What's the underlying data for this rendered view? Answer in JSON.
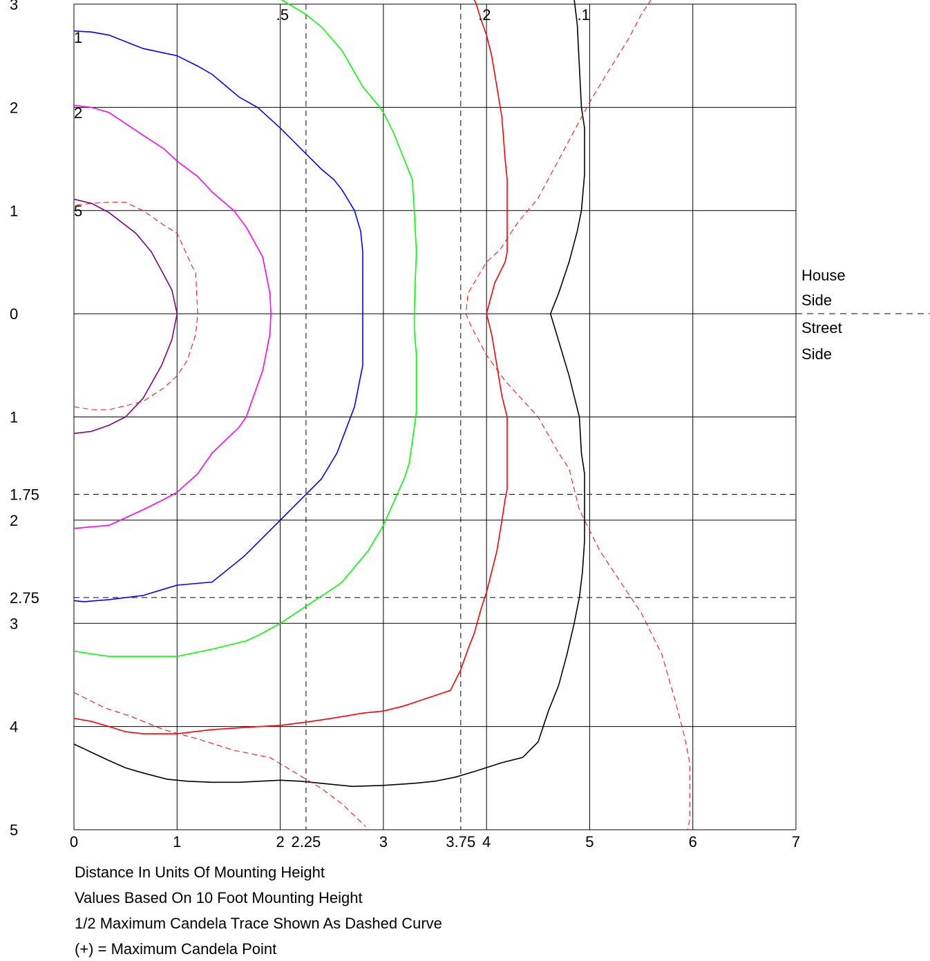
{
  "chart_data": {
    "type": "line",
    "title": "",
    "xlabel": "Distance In Units Of Mounting Height",
    "ylabel": "",
    "xlim": [
      0,
      7
    ],
    "ylim": [
      -5,
      3
    ],
    "grid": true,
    "x_ticks": [
      "0",
      "1",
      "2",
      "2.25",
      "3",
      "3.75",
      "4",
      "5",
      "6",
      "7"
    ],
    "y_ticks": [
      {
        "label": "3",
        "v": 3
      },
      {
        "label": "2",
        "v": 2
      },
      {
        "label": "1",
        "v": 1
      },
      {
        "label": "0",
        "v": 0
      },
      {
        "label": "1",
        "v": -1
      },
      {
        "label": "1.75",
        "v": -1.75
      },
      {
        "label": "2",
        "v": -2
      },
      {
        "label": "2.75",
        "v": -2.75
      },
      {
        "label": "3",
        "v": -3
      },
      {
        "label": "4",
        "v": -4
      },
      {
        "label": "5",
        "v": -5
      }
    ],
    "grid_x": [
      0,
      1,
      2,
      3,
      4,
      5,
      6,
      7
    ],
    "grid_y": [
      3,
      2,
      1,
      0,
      -1,
      -2,
      -3,
      -4,
      -5
    ],
    "dashed_x": [
      2.25,
      3.75
    ],
    "dashed_y": [
      -1.75,
      -2.75
    ],
    "side_labels": {
      "house": [
        "House",
        "Side"
      ],
      "street": [
        "Street",
        "Side"
      ]
    },
    "series": [
      {
        "label": "1",
        "label_pos": [
          0.0,
          2.68
        ],
        "color": "#0000ff",
        "dashed": false,
        "points": [
          [
            0,
            2.74
          ],
          [
            0.17,
            2.73
          ],
          [
            0.34,
            2.7
          ],
          [
            0.67,
            2.57
          ],
          [
            1.0,
            2.5
          ],
          [
            1.2,
            2.4
          ],
          [
            1.34,
            2.32
          ],
          [
            1.6,
            2.1
          ],
          [
            1.78,
            2.0
          ],
          [
            2.0,
            1.8
          ],
          [
            2.2,
            1.6
          ],
          [
            2.4,
            1.4
          ],
          [
            2.52,
            1.3
          ],
          [
            2.6,
            1.2
          ],
          [
            2.72,
            1.0
          ],
          [
            2.78,
            0.8
          ],
          [
            2.8,
            0.6
          ],
          [
            2.8,
            0
          ],
          [
            2.8,
            -0.5
          ],
          [
            2.78,
            -0.6
          ],
          [
            2.72,
            -0.9
          ],
          [
            2.55,
            -1.35
          ],
          [
            2.4,
            -1.6
          ],
          [
            2.1,
            -1.9
          ],
          [
            2.0,
            -2.0
          ],
          [
            1.8,
            -2.2
          ],
          [
            1.65,
            -2.35
          ],
          [
            1.34,
            -2.6
          ],
          [
            1.0,
            -2.63
          ],
          [
            0.67,
            -2.73
          ],
          [
            0.34,
            -2.77
          ],
          [
            0.1,
            -2.79
          ],
          [
            0,
            -2.78
          ]
        ]
      },
      {
        "label": "2",
        "label_pos": [
          0.0,
          1.95
        ],
        "color": "#ff00ff",
        "dashed": false,
        "points": [
          [
            0,
            2.02
          ],
          [
            0.17,
            2.0
          ],
          [
            0.34,
            1.95
          ],
          [
            0.67,
            1.73
          ],
          [
            0.87,
            1.6
          ],
          [
            1.0,
            1.48
          ],
          [
            1.2,
            1.33
          ],
          [
            1.34,
            1.18
          ],
          [
            1.55,
            1.0
          ],
          [
            1.67,
            0.84
          ],
          [
            1.83,
            0.55
          ],
          [
            1.9,
            0.2
          ],
          [
            1.91,
            0
          ],
          [
            1.9,
            -0.2
          ],
          [
            1.83,
            -0.55
          ],
          [
            1.67,
            -1.0
          ],
          [
            1.6,
            -1.1
          ],
          [
            1.34,
            -1.35
          ],
          [
            1.2,
            -1.55
          ],
          [
            1.0,
            -1.73
          ],
          [
            0.87,
            -1.8
          ],
          [
            0.67,
            -1.9
          ],
          [
            0.34,
            -2.05
          ],
          [
            0,
            -2.08
          ]
        ]
      },
      {
        "label": "5",
        "label_pos": [
          0.0,
          1.0
        ],
        "color": "#800080",
        "dashed": false,
        "points": [
          [
            0,
            1.11
          ],
          [
            0.17,
            1.07
          ],
          [
            0.34,
            0.98
          ],
          [
            0.6,
            0.78
          ],
          [
            0.75,
            0.6
          ],
          [
            0.87,
            0.38
          ],
          [
            0.95,
            0.23
          ],
          [
            1.0,
            0
          ],
          [
            0.95,
            -0.25
          ],
          [
            0.85,
            -0.5
          ],
          [
            0.67,
            -0.82
          ],
          [
            0.5,
            -1.0
          ],
          [
            0.34,
            -1.08
          ],
          [
            0.17,
            -1.14
          ],
          [
            0,
            -1.16
          ]
        ]
      },
      {
        "label": "",
        "color": "#ff0000",
        "dashed": true,
        "points": [
          [
            0,
            -0.9
          ],
          [
            0.17,
            -0.93
          ],
          [
            0.34,
            -0.93
          ],
          [
            0.67,
            -0.85
          ],
          [
            0.87,
            -0.72
          ],
          [
            1.0,
            -0.6
          ],
          [
            1.1,
            -0.45
          ],
          [
            1.18,
            -0.2
          ],
          [
            1.2,
            0
          ],
          [
            1.18,
            0.4
          ],
          [
            1.15,
            0.45
          ],
          [
            1.0,
            0.78
          ],
          [
            0.87,
            0.86
          ],
          [
            0.67,
            1.0
          ],
          [
            0.5,
            1.08
          ],
          [
            0.34,
            1.08
          ],
          [
            0.17,
            1.07
          ],
          [
            0.0,
            1.05
          ]
        ]
      },
      {
        "label": ".5",
        "label_pos": [
          1.96,
          2.9
        ],
        "color": "#00ff00",
        "dashed": false,
        "points": [
          [
            2.0,
            3.05
          ],
          [
            2.25,
            2.9
          ],
          [
            2.4,
            2.78
          ],
          [
            2.6,
            2.55
          ],
          [
            2.8,
            2.2
          ],
          [
            2.95,
            2.02
          ],
          [
            3.0,
            1.95
          ],
          [
            3.1,
            1.75
          ],
          [
            3.2,
            1.5
          ],
          [
            3.28,
            1.3
          ],
          [
            3.3,
            1.0
          ],
          [
            3.32,
            0.6
          ],
          [
            3.31,
            0.33
          ],
          [
            3.3,
            0
          ],
          [
            3.3,
            -0.15
          ],
          [
            3.32,
            -0.4
          ],
          [
            3.32,
            -0.95
          ],
          [
            3.3,
            -1.1
          ],
          [
            3.25,
            -1.45
          ],
          [
            3.2,
            -1.6
          ],
          [
            3.0,
            -2.05
          ],
          [
            2.85,
            -2.3
          ],
          [
            2.6,
            -2.6
          ],
          [
            2.5,
            -2.67
          ],
          [
            2.3,
            -2.8
          ],
          [
            2.0,
            -3.0
          ],
          [
            1.8,
            -3.11
          ],
          [
            1.67,
            -3.17
          ],
          [
            1.34,
            -3.25
          ],
          [
            1.0,
            -3.32
          ],
          [
            0.8,
            -3.32
          ],
          [
            0.34,
            -3.32
          ],
          [
            0.0,
            -3.27
          ]
        ]
      },
      {
        "label": ".2",
        "label_pos": [
          3.92,
          2.9
        ],
        "color": "#ff0000",
        "dashed": false,
        "points": [
          [
            3.88,
            3.05
          ],
          [
            3.9,
            3.0
          ],
          [
            3.95,
            2.84
          ],
          [
            4.0,
            2.7
          ],
          [
            4.05,
            2.5
          ],
          [
            4.1,
            2.2
          ],
          [
            4.15,
            1.9
          ],
          [
            4.18,
            1.5
          ],
          [
            4.2,
            1.3
          ],
          [
            4.2,
            0.6
          ],
          [
            4.18,
            0.5
          ],
          [
            4.08,
            0.3
          ],
          [
            4.0,
            0
          ],
          [
            4.05,
            -0.2
          ],
          [
            4.1,
            -0.5
          ],
          [
            4.15,
            -0.8
          ],
          [
            4.2,
            -1.0
          ],
          [
            4.2,
            -1.7
          ],
          [
            4.18,
            -1.8
          ],
          [
            4.15,
            -2.0
          ],
          [
            4.1,
            -2.3
          ],
          [
            4.05,
            -2.5
          ],
          [
            4.0,
            -2.7
          ],
          [
            3.95,
            -2.85
          ],
          [
            3.88,
            -3.1
          ],
          [
            3.82,
            -3.25
          ],
          [
            3.75,
            -3.45
          ],
          [
            3.65,
            -3.65
          ],
          [
            3.5,
            -3.7
          ],
          [
            3.2,
            -3.8
          ],
          [
            3.0,
            -3.85
          ],
          [
            2.8,
            -3.87
          ],
          [
            2.5,
            -3.92
          ],
          [
            2.3,
            -3.95
          ],
          [
            2.0,
            -3.99
          ],
          [
            1.8,
            -4.0
          ],
          [
            1.34,
            -4.03
          ],
          [
            1.0,
            -4.07
          ],
          [
            0.67,
            -4.07
          ],
          [
            0.5,
            -4.05
          ],
          [
            0.34,
            -4.0
          ],
          [
            0.17,
            -3.95
          ],
          [
            0,
            -3.92
          ]
        ]
      },
      {
        "label": ".1",
        "label_pos": [
          4.88,
          2.9
        ],
        "color": "#000000",
        "dashed": false,
        "points": [
          [
            4.85,
            3.05
          ],
          [
            4.88,
            2.8
          ],
          [
            4.9,
            2.4
          ],
          [
            4.92,
            2.0
          ],
          [
            4.95,
            1.8
          ],
          [
            4.95,
            1.35
          ],
          [
            4.92,
            1.0
          ],
          [
            4.88,
            0.8
          ],
          [
            4.8,
            0.5
          ],
          [
            4.7,
            0.2
          ],
          [
            4.62,
            0
          ],
          [
            4.68,
            -0.2
          ],
          [
            4.8,
            -0.6
          ],
          [
            4.85,
            -0.8
          ],
          [
            4.9,
            -1.0
          ],
          [
            4.92,
            -1.35
          ],
          [
            4.95,
            -1.55
          ],
          [
            4.95,
            -2.2
          ],
          [
            4.93,
            -2.5
          ],
          [
            4.9,
            -2.75
          ],
          [
            4.85,
            -3.0
          ],
          [
            4.78,
            -3.3
          ],
          [
            4.7,
            -3.6
          ],
          [
            4.6,
            -3.85
          ],
          [
            4.5,
            -4.15
          ],
          [
            4.35,
            -4.3
          ],
          [
            4.15,
            -4.35
          ],
          [
            3.9,
            -4.43
          ],
          [
            3.7,
            -4.49
          ],
          [
            3.5,
            -4.53
          ],
          [
            3.3,
            -4.55
          ],
          [
            3.0,
            -4.57
          ],
          [
            2.7,
            -4.58
          ],
          [
            2.4,
            -4.55
          ],
          [
            2.2,
            -4.53
          ],
          [
            2.0,
            -4.52
          ],
          [
            1.8,
            -4.53
          ],
          [
            1.6,
            -4.54
          ],
          [
            1.34,
            -4.54
          ],
          [
            1.1,
            -4.53
          ],
          [
            0.9,
            -4.51
          ],
          [
            0.67,
            -4.45
          ],
          [
            0.5,
            -4.4
          ],
          [
            0.34,
            -4.33
          ],
          [
            0.17,
            -4.25
          ],
          [
            0,
            -4.17
          ]
        ]
      },
      {
        "label": "",
        "color": "#ff0000",
        "dashed": true,
        "points": [
          [
            5.6,
            3.05
          ],
          [
            5.5,
            2.9
          ],
          [
            5.38,
            2.67
          ],
          [
            5.15,
            2.3
          ],
          [
            5.0,
            2.05
          ],
          [
            4.8,
            1.68
          ],
          [
            4.65,
            1.4
          ],
          [
            4.5,
            1.12
          ],
          [
            4.3,
            0.88
          ],
          [
            4.13,
            0.62
          ],
          [
            4.0,
            0.5
          ],
          [
            3.82,
            0.2
          ],
          [
            3.8,
            0
          ],
          [
            3.85,
            -0.12
          ],
          [
            4.0,
            -0.4
          ],
          [
            4.18,
            -0.65
          ],
          [
            4.5,
            -1.0
          ],
          [
            4.7,
            -1.35
          ],
          [
            4.8,
            -1.5
          ],
          [
            4.9,
            -1.9
          ],
          [
            5.1,
            -2.3
          ],
          [
            5.3,
            -2.6
          ],
          [
            5.5,
            -2.9
          ],
          [
            5.7,
            -3.3
          ],
          [
            5.83,
            -3.75
          ],
          [
            5.92,
            -4.1
          ],
          [
            5.97,
            -4.35
          ],
          [
            5.97,
            -4.9
          ],
          [
            5.95,
            -5.0
          ]
        ]
      },
      {
        "label": "",
        "color": "#ff0000",
        "dashed": true,
        "points": [
          [
            0,
            -3.67
          ],
          [
            0.3,
            -3.82
          ],
          [
            0.55,
            -3.9
          ],
          [
            0.87,
            -4.03
          ],
          [
            1.2,
            -4.12
          ],
          [
            1.55,
            -4.23
          ],
          [
            1.9,
            -4.3
          ],
          [
            2.15,
            -4.45
          ],
          [
            2.4,
            -4.6
          ],
          [
            2.6,
            -4.75
          ],
          [
            2.83,
            -4.97
          ]
        ]
      }
    ]
  },
  "notes": [
    "Distance In Units Of Mounting Height",
    "Values Based On 10 Foot Mounting Height",
    "1/2 Maximum Candela Trace Shown As Dashed Curve",
    "(+) = Maximum Candela Point"
  ]
}
